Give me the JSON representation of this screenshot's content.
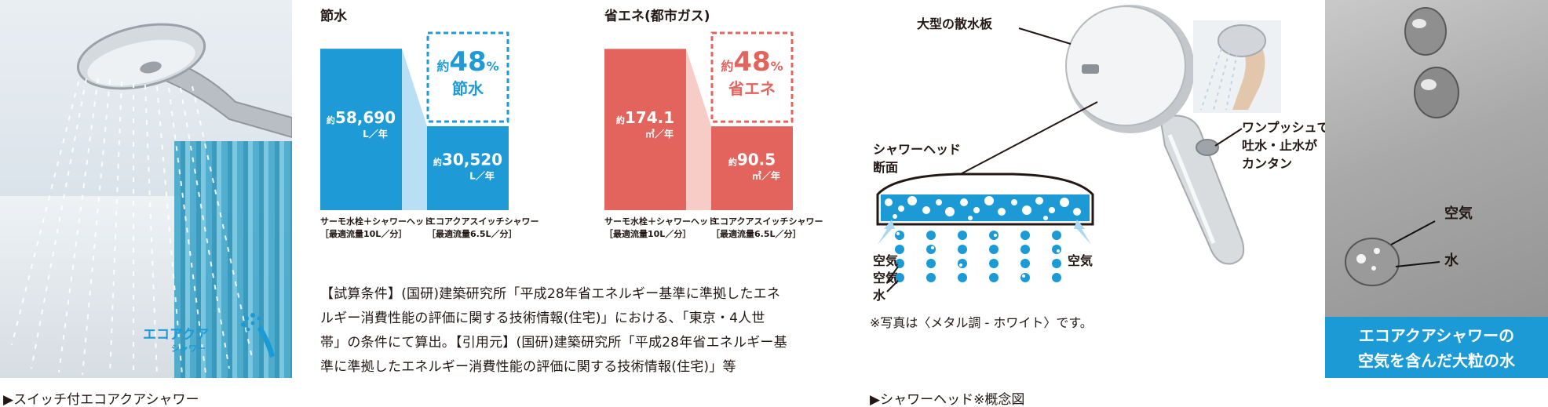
{
  "left_photo": {
    "logo_text": "エコアクア",
    "logo_sub": "シャワー",
    "caption": "▶スイッチ付エコアクアシャワー"
  },
  "colors": {
    "blue": "#1e9ad6",
    "light_blue": "#b9dff4",
    "red": "#e2645c",
    "light_red": "#f7cbc6"
  },
  "chart_data": [
    {
      "type": "bar",
      "title": "節水",
      "categories": [
        "サーモ水栓＋シャワーヘッド",
        "エコアクアスイッチシャワー"
      ],
      "values": [
        58690,
        30520
      ],
      "ylim": [
        0,
        65000
      ],
      "bars": [
        {
          "value_prefix": "約",
          "value_text": "58,690",
          "unit": "L／年",
          "name": "サーモ水栓＋シャワーヘッド",
          "sub": "［最適流量10L／分］"
        },
        {
          "value_prefix": "約",
          "value_text": "30,520",
          "unit": "L／年",
          "name": "エコアクアスイッチシャワー",
          "sub": "［最適流量6.5L／分］"
        }
      ],
      "callout": {
        "prefix": "約",
        "number": "48",
        "percent": "%",
        "label": "節水"
      }
    },
    {
      "type": "bar",
      "title": "省エネ(都市ガス)",
      "categories": [
        "サーモ水栓＋シャワーヘッド",
        "エコアクアスイッチシャワー"
      ],
      "values": [
        174.1,
        90.5
      ],
      "ylim": [
        0,
        193
      ],
      "bars": [
        {
          "value_prefix": "約",
          "value_text": "174.1",
          "unit": "㎥／年",
          "name": "サーモ水栓＋シャワーヘッド",
          "sub": "［最適流量10L／分］"
        },
        {
          "value_prefix": "約",
          "value_text": "90.5",
          "unit": "㎥／年",
          "name": "エコアクアスイッチシャワー",
          "sub": "［最適流量6.5L／分］"
        }
      ],
      "callout": {
        "prefix": "約",
        "number": "48",
        "percent": "%",
        "label": "省エネ"
      }
    }
  ],
  "note_lines": [
    "【試算条件】(国研)建築研究所「平成28年省エネルギー基準に準拠したエネ",
    "ルギー消費性能の評価に関する技術情報(住宅)」における、「東京・4人世",
    "帯」の条件にて算出。【引用元】(国研)建築研究所「平成28年省エネルギー基",
    "準に準拠したエネルギー消費性能の評価に関する技術情報(住宅)」等"
  ],
  "diagram": {
    "large_plate": "大型の散水板",
    "section_line1": "シャワーヘッド",
    "section_line2": "断面",
    "one_push_line1": "ワンプッシュで",
    "one_push_line2": "吐水・止水が",
    "one_push_line3": "カンタン",
    "air_left1": "空気",
    "air_left2": "空気",
    "water_left": "水",
    "air_right": "空気",
    "photo_note": "※写真は〈メタル調 - ホワイト〉です。",
    "caption": "▶シャワーヘッド※概念図"
  },
  "drops_photo": {
    "air_label": "空気",
    "water_label": "水",
    "banner_line1": "エコアクアシャワーの",
    "banner_line2": "空気を含んだ大粒の水"
  }
}
